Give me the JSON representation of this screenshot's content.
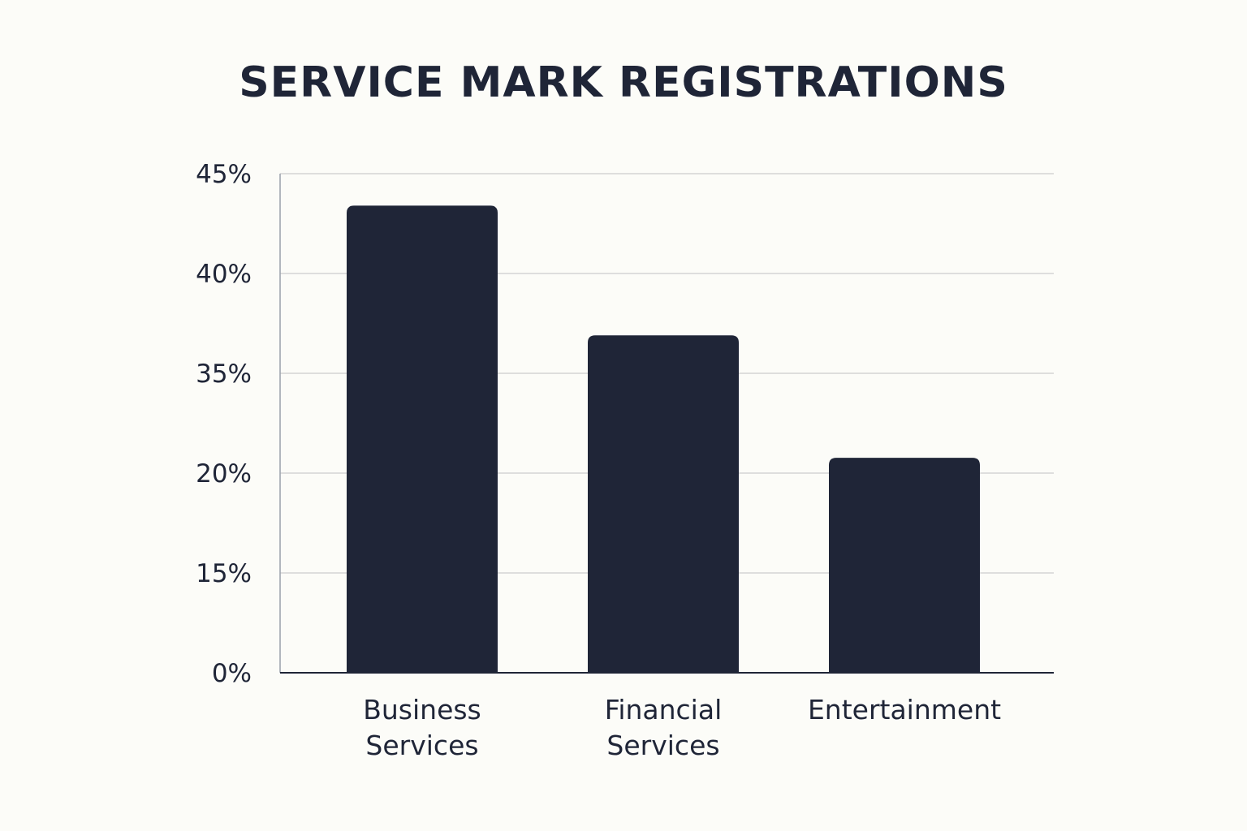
{
  "chart_data": {
    "type": "bar",
    "title": "SERVICE MARK REGISTRATIONS",
    "xlabel": "",
    "ylabel": "",
    "categories": [
      [
        "Business",
        "Services"
      ],
      [
        "Financial",
        "Services"
      ],
      [
        "Entertainment"
      ]
    ],
    "values": [
      43.4,
      36.9,
      22.3
    ],
    "y_ticks": [
      "0%",
      "15%",
      "20%",
      "35%",
      "40%",
      "45%"
    ],
    "grid": true,
    "legend": "none",
    "colors": {
      "bar": "#1f2537",
      "grid": "#d4d4d4",
      "axis": "#1f2537",
      "text": "#1f2537",
      "background": "#fcfcf8"
    }
  }
}
